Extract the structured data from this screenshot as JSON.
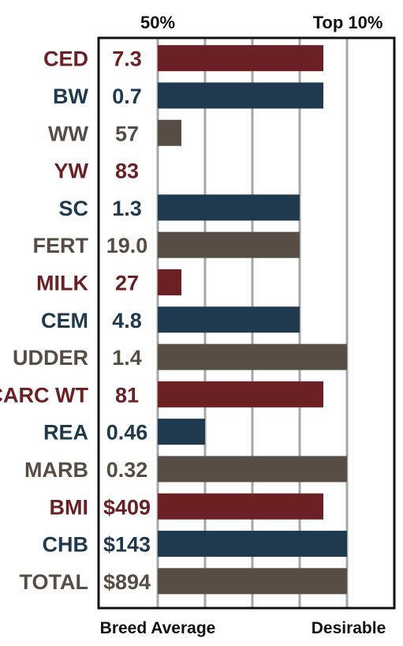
{
  "chart_data": {
    "type": "bar",
    "orientation": "horizontal",
    "top_labels": [
      "50%",
      "Top 10%"
    ],
    "bottom_labels": [
      "Breed Average",
      "Desirable"
    ],
    "colors": {
      "red": "#6b2024",
      "blue": "#1f3a4f",
      "gray": "#574d44",
      "grid": "#a6a6a6",
      "frame": "#111111"
    },
    "xlim": [
      0,
      5
    ],
    "grid": true,
    "categories": [
      "CED",
      "BW",
      "WW",
      "YW",
      "SC",
      "FERT",
      "MILK",
      "CEM",
      "UDDER",
      "CARC WT",
      "REA",
      "MARB",
      "BMI",
      "CHB",
      "TOTAL"
    ],
    "value_labels": [
      "7.3",
      "0.7",
      "57",
      "83",
      "1.3",
      "19.0",
      "27",
      "4.8",
      "1.4",
      "81",
      "0.46",
      "0.32",
      "$409",
      "$143",
      "$894"
    ],
    "values": [
      3.5,
      3.5,
      0.5,
      0,
      3,
      3,
      0.5,
      3,
      4,
      3.5,
      1,
      4,
      3.5,
      4,
      4
    ],
    "bar_colors": [
      "red",
      "blue",
      "gray",
      "red",
      "blue",
      "gray",
      "red",
      "blue",
      "gray",
      "red",
      "blue",
      "gray",
      "red",
      "blue",
      "gray"
    ]
  }
}
